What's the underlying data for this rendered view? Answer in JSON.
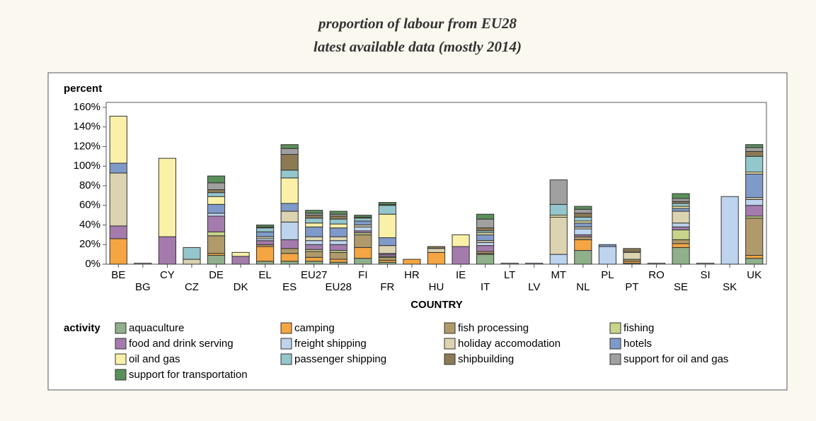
{
  "chart_data": {
    "type": "stacked_bar",
    "title": "proportion of labour from EU28",
    "subtitle": "latest available data (mostly 2014)",
    "y_label": "percent",
    "x_label": "COUNTRY",
    "legend_title": "activity",
    "categories": [
      "BE",
      "BG",
      "CY",
      "CZ",
      "DE",
      "DK",
      "EL",
      "ES",
      "EU27",
      "EU28",
      "FI",
      "FR",
      "HR",
      "HU",
      "IE",
      "IT",
      "LT",
      "LV",
      "MT",
      "NL",
      "PL",
      "PT",
      "RO",
      "SE",
      "SI",
      "SK",
      "UK"
    ],
    "ylim": [
      0,
      165
    ],
    "yticks": [
      {
        "value": 0,
        "label": "0%"
      },
      {
        "value": 20,
        "label": "20%"
      },
      {
        "value": 40,
        "label": "40%"
      },
      {
        "value": 60,
        "label": "60%"
      },
      {
        "value": 80,
        "label": "80%"
      },
      {
        "value": 100,
        "label": "100%"
      },
      {
        "value": 120,
        "label": "120%"
      },
      {
        "value": 140,
        "label": "140%"
      },
      {
        "value": 160,
        "label": "160%"
      }
    ],
    "series": [
      {
        "name": "aquaculture",
        "color": "#8fb08a",
        "values": [
          0,
          0,
          0,
          0,
          9,
          0,
          3,
          3,
          3,
          2,
          6,
          2,
          0,
          0,
          0,
          10,
          0,
          0,
          0,
          14,
          0,
          1,
          0,
          17,
          0,
          0,
          6
        ]
      },
      {
        "name": "camping",
        "color": "#f5a542",
        "values": [
          26,
          0,
          0,
          0,
          2,
          0,
          15,
          8,
          4,
          3,
          11,
          2,
          5,
          12,
          0,
          1,
          0,
          0,
          0,
          11,
          0,
          2,
          0,
          4,
          0,
          0,
          3
        ]
      },
      {
        "name": "fish processing",
        "color": "#b09a6a",
        "values": [
          0,
          0,
          0,
          0,
          18,
          0,
          2,
          5,
          6,
          7,
          13,
          3,
          0,
          0,
          0,
          2,
          0,
          0,
          0,
          3,
          0,
          2,
          0,
          4,
          0,
          0,
          38
        ]
      },
      {
        "name": "fishing",
        "color": "#c8d48a",
        "values": [
          0,
          0,
          0,
          0,
          4,
          0,
          0,
          0,
          2,
          2,
          2,
          1,
          0,
          0,
          0,
          0,
          0,
          0,
          0,
          0,
          0,
          0,
          0,
          10,
          0,
          0,
          2
        ]
      },
      {
        "name": "food and drink serving",
        "color": "#a57bad",
        "values": [
          13,
          0,
          28,
          0,
          16,
          8,
          4,
          9,
          5,
          6,
          2,
          2,
          0,
          0,
          18,
          6,
          0,
          0,
          0,
          2,
          0,
          0,
          0,
          3,
          0,
          0,
          11
        ]
      },
      {
        "name": "freight shipping",
        "color": "#bdd3ee",
        "values": [
          0,
          0,
          0,
          0,
          3,
          0,
          2,
          18,
          4,
          4,
          4,
          1,
          0,
          0,
          0,
          3,
          1,
          1,
          10,
          6,
          18,
          0,
          1,
          4,
          1,
          69,
          6
        ]
      },
      {
        "name": "holiday accomodation",
        "color": "#dcd3b0",
        "values": [
          54,
          1,
          0,
          5,
          0,
          0,
          2,
          11,
          4,
          4,
          2,
          8,
          0,
          4,
          0,
          2,
          0,
          0,
          38,
          2,
          0,
          7,
          0,
          12,
          0,
          0,
          2
        ]
      },
      {
        "name": "hotels",
        "color": "#7f9ac8",
        "values": [
          10,
          0,
          0,
          0,
          9,
          0,
          5,
          8,
          10,
          9,
          4,
          8,
          0,
          0,
          0,
          6,
          0,
          0,
          0,
          4,
          2,
          0,
          0,
          3,
          0,
          0,
          24
        ]
      },
      {
        "name": "oil and gas",
        "color": "#fbf0a8",
        "values": [
          48,
          0,
          80,
          0,
          8,
          4,
          0,
          26,
          4,
          4,
          0,
          24,
          0,
          0,
          12,
          2,
          0,
          0,
          2,
          2,
          0,
          1,
          0,
          2,
          0,
          0,
          2
        ]
      },
      {
        "name": "passenger shipping",
        "color": "#93c7cc",
        "values": [
          0,
          0,
          0,
          12,
          4,
          0,
          4,
          8,
          5,
          5,
          3,
          9,
          0,
          0,
          0,
          2,
          0,
          0,
          11,
          4,
          0,
          0,
          0,
          3,
          0,
          0,
          16
        ]
      },
      {
        "name": "shipbuilding",
        "color": "#8c7a55",
        "values": [
          0,
          0,
          0,
          0,
          3,
          0,
          1,
          16,
          3,
          3,
          1,
          1,
          0,
          2,
          0,
          3,
          0,
          0,
          0,
          4,
          0,
          3,
          0,
          2,
          0,
          0,
          5
        ]
      },
      {
        "name": "support for oil and gas",
        "color": "#a0a0a0",
        "values": [
          0,
          0,
          0,
          0,
          7,
          0,
          0,
          6,
          2,
          2,
          0,
          0,
          0,
          0,
          0,
          9,
          0,
          0,
          25,
          4,
          0,
          0,
          0,
          3,
          0,
          0,
          4
        ]
      },
      {
        "name": "support for transportation",
        "color": "#5a8f5a",
        "values": [
          0,
          0,
          0,
          0,
          7,
          0,
          2,
          4,
          3,
          3,
          2,
          2,
          0,
          0,
          0,
          5,
          0,
          0,
          0,
          3,
          0,
          0,
          0,
          5,
          0,
          0,
          3
        ]
      }
    ]
  }
}
